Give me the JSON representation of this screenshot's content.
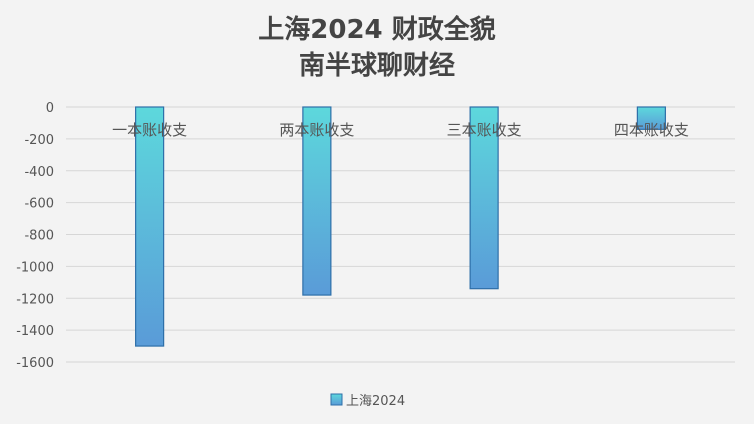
{
  "chart_data": {
    "type": "bar",
    "title": "上海2024 财政全貌",
    "subtitle": "南半球聊财经",
    "categories": [
      "一本账收支",
      "两本账收支",
      "三本账收支",
      "四本账收支"
    ],
    "series": [
      {
        "name": "上海2024",
        "values": [
          -1500,
          -1180,
          -1140,
          -140
        ]
      }
    ],
    "ylim": [
      -1600,
      0
    ],
    "yticks": [
      0,
      -200,
      -400,
      -600,
      -800,
      -1000,
      -1200,
      -1400,
      -1600
    ],
    "grid": true,
    "legend": "bottom",
    "colors": {
      "bar_top": "#5dd8dc",
      "bar_bottom": "#5a9bd8",
      "bar_edge": "#2e6fa8"
    }
  }
}
